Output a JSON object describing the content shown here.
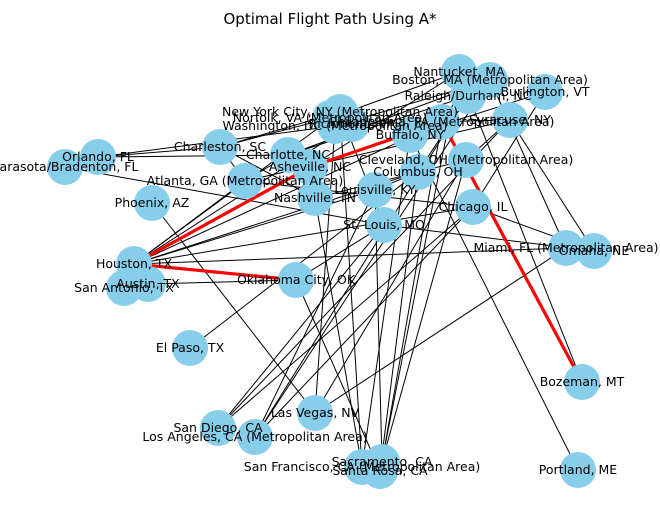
{
  "title": "Optimal Flight Path Using A*",
  "colors": {
    "node": "#87ceeb",
    "edge": "#000000",
    "path": "#ff0000"
  },
  "nodes": [
    {
      "id": "nantucket",
      "label": "Nantucket, MA"
    },
    {
      "id": "boston",
      "label": "Boston, MA (Metropolitan Area)"
    },
    {
      "id": "raleigh",
      "label": "Raleigh/Durham, NC"
    },
    {
      "id": "burlington",
      "label": "Burlington, VT"
    },
    {
      "id": "syracuse",
      "label": "Syracuse, NY"
    },
    {
      "id": "norfolk",
      "label": "Norfolk, VA (Metropolitan Area)"
    },
    {
      "id": "nyc",
      "label": "New York City, NY (Metropolitan Area)"
    },
    {
      "id": "washington",
      "label": "Washington, DC (Metropolitan Area)"
    },
    {
      "id": "richmond",
      "label": "Richmond, VA"
    },
    {
      "id": "philadelphia",
      "label": "Philadelphia, PA (Metropolitan Area)"
    },
    {
      "id": "buffalo",
      "label": "Buffalo, NY"
    },
    {
      "id": "orlando",
      "label": "Orlando, FL"
    },
    {
      "id": "sarasota",
      "label": "Sarasota/Bradenton, FL"
    },
    {
      "id": "charleston",
      "label": "Charleston, SC"
    },
    {
      "id": "charlotte",
      "label": "Charlotte, NC"
    },
    {
      "id": "cleveland",
      "label": "Cleveland, OH (Metropolitan Area)"
    },
    {
      "id": "asheville",
      "label": "Asheville, NC"
    },
    {
      "id": "columbus",
      "label": "Columbus, OH"
    },
    {
      "id": "atlanta",
      "label": "Atlanta, GA (Metropolitan Area)"
    },
    {
      "id": "phoenix",
      "label": "Phoenix, AZ"
    },
    {
      "id": "louisville",
      "label": "Louisville, KY"
    },
    {
      "id": "nashville",
      "label": "Nashville, TN"
    },
    {
      "id": "chicago",
      "label": "Chicago, IL"
    },
    {
      "id": "stlouis",
      "label": "St. Louis, MO"
    },
    {
      "id": "miami",
      "label": "Miami, FL (Metropolitan Area)"
    },
    {
      "id": "omaha",
      "label": "Omaha, NE"
    },
    {
      "id": "houston",
      "label": "Houston, TX"
    },
    {
      "id": "austin",
      "label": "Austin, TX"
    },
    {
      "id": "sanantonio",
      "label": "San Antonio, TX"
    },
    {
      "id": "oklahoma",
      "label": "Oklahoma City, OK"
    },
    {
      "id": "elpaso",
      "label": "El Paso, TX"
    },
    {
      "id": "bozeman",
      "label": "Bozeman, MT"
    },
    {
      "id": "lasvegas",
      "label": "Las Vegas, NV"
    },
    {
      "id": "sandiego",
      "label": "San Diego, CA"
    },
    {
      "id": "losangeles",
      "label": "Los Angeles, CA (Metropolitan Area)"
    },
    {
      "id": "sanfrancisco",
      "label": "San Francisco, CA (Metropolitan Area)"
    },
    {
      "id": "sacramento",
      "label": "Sacramento, CA"
    },
    {
      "id": "santarosa",
      "label": "Santa Rosa, CA"
    },
    {
      "id": "portland",
      "label": "Portland, ME"
    }
  ],
  "edges": [
    [
      "nyc",
      "houston"
    ],
    [
      "nyc",
      "charleston"
    ],
    [
      "nyc",
      "stlouis"
    ],
    [
      "nyc",
      "sanfrancisco"
    ],
    [
      "washington",
      "orlando"
    ],
    [
      "washington",
      "lasvegas"
    ],
    [
      "norfolk",
      "charleston"
    ],
    [
      "norfolk",
      "nantucket"
    ],
    [
      "philadelphia",
      "houston"
    ],
    [
      "philadelphia",
      "sacramento"
    ],
    [
      "richmond",
      "syracuse"
    ],
    [
      "richmond",
      "houston"
    ],
    [
      "boston",
      "washington"
    ],
    [
      "boston",
      "miami"
    ],
    [
      "boston",
      "losangeles"
    ],
    [
      "boston",
      "charlotte"
    ],
    [
      "nantucket",
      "bozeman"
    ],
    [
      "nantucket",
      "santarosa"
    ],
    [
      "nantucket",
      "asheville"
    ],
    [
      "raleigh",
      "columbus"
    ],
    [
      "raleigh",
      "losangeles"
    ],
    [
      "raleigh",
      "charlotte"
    ],
    [
      "burlington",
      "buffalo"
    ],
    [
      "burlington",
      "chicago"
    ],
    [
      "syracuse",
      "cleveland"
    ],
    [
      "syracuse",
      "omaha"
    ],
    [
      "syracuse",
      "atlanta"
    ],
    [
      "syracuse",
      "sandiego"
    ],
    [
      "buffalo",
      "portland"
    ],
    [
      "buffalo",
      "sanfrancisco"
    ],
    [
      "cleveland",
      "lasvegas"
    ],
    [
      "cleveland",
      "sacramento"
    ],
    [
      "cleveland",
      "nashville"
    ],
    [
      "columbus",
      "houston"
    ],
    [
      "columbus",
      "santarosa"
    ],
    [
      "columbus",
      "elpaso"
    ],
    [
      "columbus",
      "louisville"
    ],
    [
      "chicago",
      "omaha"
    ],
    [
      "chicago",
      "houston"
    ],
    [
      "chicago",
      "losangeles"
    ],
    [
      "chicago",
      "sandiego"
    ],
    [
      "chicago",
      "atlanta"
    ],
    [
      "louisville",
      "losangeles"
    ],
    [
      "louisville",
      "sacramento"
    ],
    [
      "louisville",
      "houston"
    ],
    [
      "stlouis",
      "sandiego"
    ],
    [
      "stlouis",
      "sarasota"
    ],
    [
      "stlouis",
      "omaha"
    ],
    [
      "nashville",
      "sanfrancisco"
    ],
    [
      "nashville",
      "charleston"
    ],
    [
      "atlanta",
      "houston"
    ],
    [
      "atlanta",
      "charlotte"
    ],
    [
      "charlotte",
      "orlando"
    ],
    [
      "charlotte",
      "asheville"
    ],
    [
      "charleston",
      "orlando"
    ],
    [
      "charleston",
      "atlanta"
    ],
    [
      "orlando",
      "sarasota"
    ],
    [
      "phoenix",
      "lasvegas"
    ],
    [
      "houston",
      "austin"
    ],
    [
      "houston",
      "sanantonio"
    ],
    [
      "houston",
      "miami"
    ],
    [
      "austin",
      "oklahoma"
    ],
    [
      "oklahoma",
      "santarosa"
    ],
    [
      "oklahoma",
      "stlouis"
    ],
    [
      "miami",
      "lasvegas"
    ],
    [
      "miami",
      "omaha"
    ]
  ],
  "path": [
    "bozeman",
    "philadelphia",
    "asheville",
    "houston",
    "oklahoma"
  ]
}
